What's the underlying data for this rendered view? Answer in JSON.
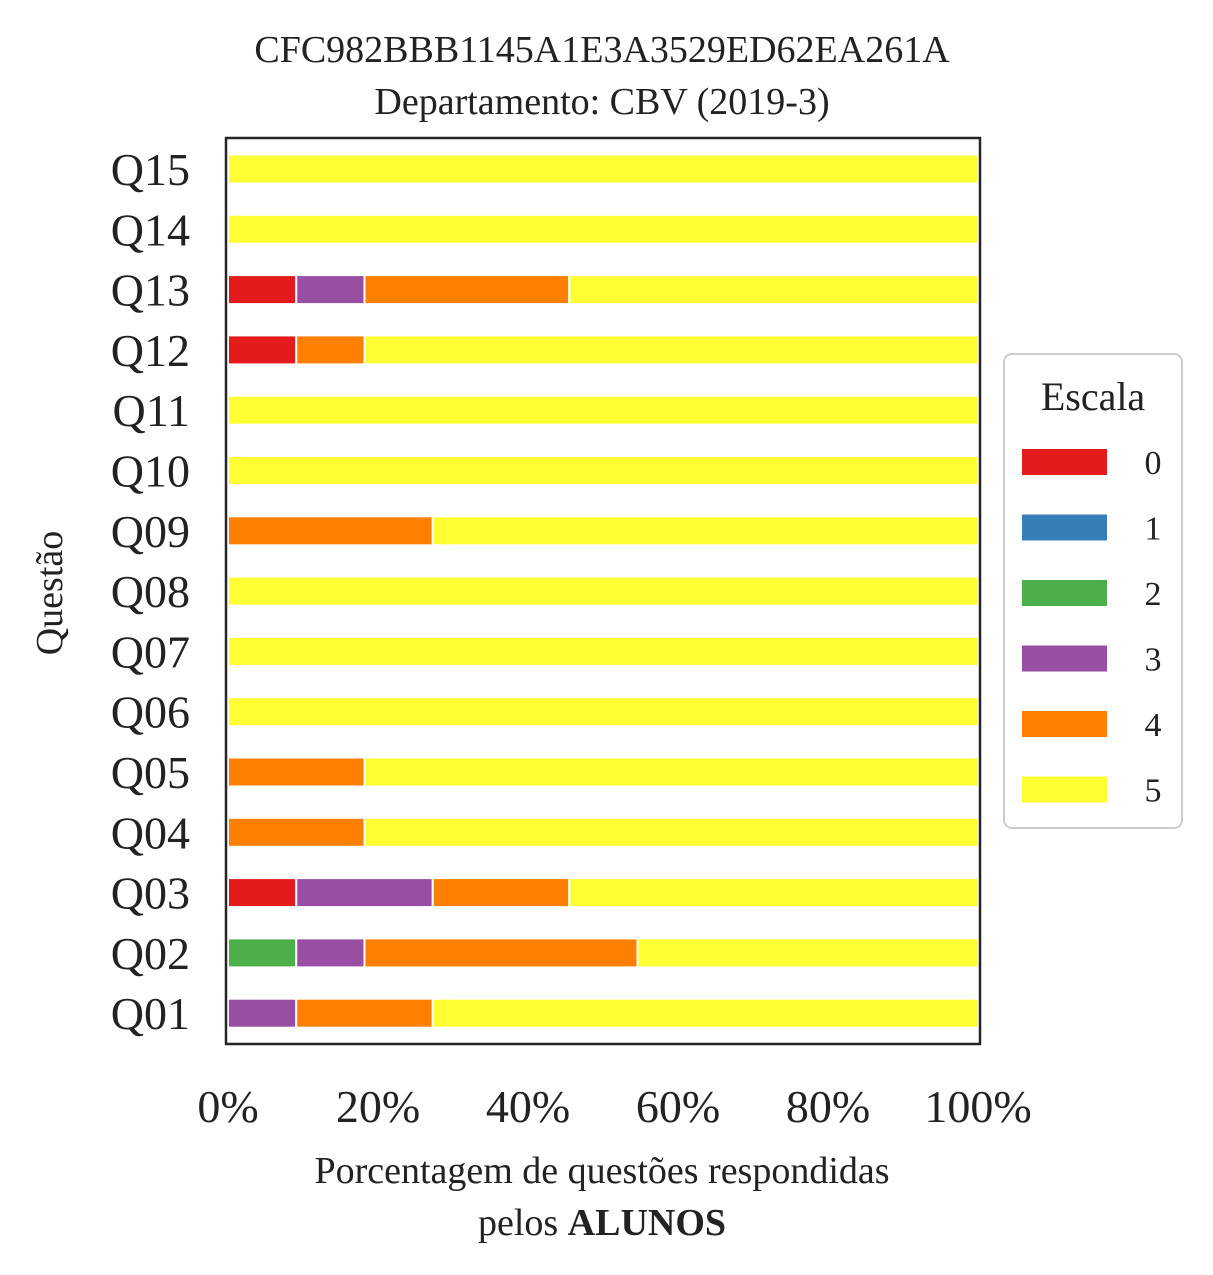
{
  "chart_data": {
    "type": "bar",
    "orientation": "horizontal",
    "stacked": true,
    "title": "CFC982BBB1145A1E3A3529ED62EA261A",
    "subtitle": "Departamento: CBV (2019-3)",
    "xlabel_line1": "Porcentagem de questões respondidas",
    "xlabel_line2_prefix": "pelos ",
    "xlabel_line2_bold": "ALUNOS",
    "ylabel": "Questão",
    "xlim": [
      0,
      100
    ],
    "xticks": [
      "0%",
      "20%",
      "40%",
      "60%",
      "80%",
      "100%"
    ],
    "categories": [
      "Q01",
      "Q02",
      "Q03",
      "Q04",
      "Q05",
      "Q06",
      "Q07",
      "Q08",
      "Q09",
      "Q10",
      "Q11",
      "Q12",
      "Q13",
      "Q14",
      "Q15"
    ],
    "legend_title": "Escala",
    "legend_position": "center-right",
    "grid": false,
    "series": [
      {
        "name": "0",
        "color": "#e41a1c",
        "values": [
          0,
          0,
          9.1,
          0,
          0,
          0,
          0,
          0,
          0,
          0,
          0,
          9.1,
          9.1,
          0,
          0
        ]
      },
      {
        "name": "1",
        "color": "#377eb8",
        "values": [
          0,
          0,
          0,
          0,
          0,
          0,
          0,
          0,
          0,
          0,
          0,
          0,
          0,
          0,
          0
        ]
      },
      {
        "name": "2",
        "color": "#4daf4a",
        "values": [
          0,
          9.1,
          0,
          0,
          0,
          0,
          0,
          0,
          0,
          0,
          0,
          0,
          0,
          0,
          0
        ]
      },
      {
        "name": "3",
        "color": "#984ea3",
        "values": [
          9.1,
          9.1,
          18.2,
          0,
          0,
          0,
          0,
          0,
          0,
          0,
          0,
          0,
          9.1,
          0,
          0
        ]
      },
      {
        "name": "4",
        "color": "#ff7f00",
        "values": [
          18.2,
          36.4,
          18.2,
          18.2,
          18.2,
          0,
          0,
          0,
          27.3,
          0,
          0,
          9.1,
          27.3,
          0,
          0
        ]
      },
      {
        "name": "5",
        "color": "#ffff33",
        "values": [
          72.7,
          45.4,
          54.5,
          81.8,
          81.8,
          100,
          100,
          100,
          72.7,
          100,
          100,
          81.8,
          54.5,
          100,
          100
        ]
      }
    ]
  }
}
